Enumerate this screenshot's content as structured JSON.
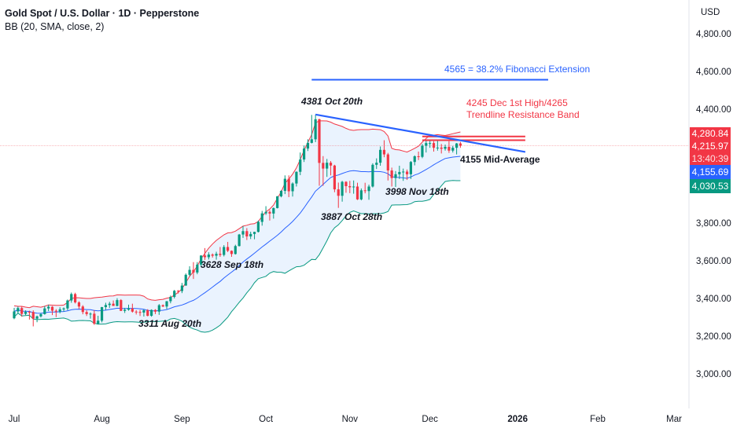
{
  "header": {
    "title": "Gold Spot / U.S. Dollar · 1D · Pepperstone",
    "indicator": "BB (20, SMA, close, 2)"
  },
  "axis": {
    "currency": "USD",
    "y_ticks": [
      "4,800.00",
      "4,600.00",
      "4,400.00",
      "3,800.00",
      "3,600.00",
      "3,400.00",
      "3,200.00",
      "3,000.00"
    ],
    "y_tick_values": [
      4800,
      4600,
      4400,
      3800,
      3600,
      3400,
      3200,
      3000
    ],
    "x_ticks": [
      "Jul",
      "Aug",
      "Sep",
      "Oct",
      "Nov",
      "Dec",
      "2026",
      "Feb",
      "Mar"
    ],
    "x_tick_dates": [
      "2025-07-01",
      "2025-08-01",
      "2025-09-01",
      "2025-10-01",
      "2025-11-01",
      "2025-12-01",
      "2026-01-01",
      "2026-02-01",
      "2026-03-01"
    ]
  },
  "badges": {
    "bb_upper": "4,280.84",
    "last_price": "4,215.97",
    "countdown": "13:40:39",
    "bb_basis": "4,155.69",
    "bb_lower": "4,030.53"
  },
  "annotations": {
    "fib": "4565 = 38.2% Fibonacci Extension",
    "resistance_1": "4245 Dec 1st High/4265",
    "resistance_2": "Trendline Resistance Band",
    "high": "4381 Oct 20th",
    "mid": "4155 Mid-Average",
    "low_nov": "3998 Nov 18th",
    "low_oct": "3887 Oct 28th",
    "low_sep": "3628 Sep 18th",
    "low_aug": "3311 Aug 20th"
  },
  "colors": {
    "up": "#089981",
    "down": "#f23645",
    "bb_upper": "#f23645",
    "bb_basis": "#2962ff",
    "bb_lower": "#089981",
    "bb_fill": "#e3effd",
    "fib": "#2962ff",
    "trendline": "#2962ff",
    "resistance": "#f23645"
  },
  "chart_data": {
    "type": "candlestick",
    "title": "Gold Spot / U.S. Dollar · 1D · Pepperstone",
    "ylim": [
      3000,
      4800
    ],
    "start_date": "2025-07-01",
    "ohlc": [
      [
        3303,
        3358,
        3298,
        3339
      ],
      [
        3339,
        3365,
        3328,
        3357
      ],
      [
        3357,
        3366,
        3311,
        3326
      ],
      [
        3326,
        3345,
        3320,
        3337
      ],
      [
        3337,
        3343,
        3296,
        3336
      ],
      [
        3336,
        3345,
        3260,
        3301
      ],
      [
        3301,
        3317,
        3282,
        3313
      ],
      [
        3313,
        3330,
        3307,
        3325
      ],
      [
        3325,
        3368,
        3322,
        3355
      ],
      [
        3355,
        3375,
        3341,
        3364
      ],
      [
        3364,
        3367,
        3320,
        3343
      ],
      [
        3343,
        3351,
        3309,
        3338
      ],
      [
        3338,
        3361,
        3329,
        3350
      ],
      [
        3350,
        3360,
        3338,
        3355
      ],
      [
        3355,
        3402,
        3345,
        3397
      ],
      [
        3397,
        3439,
        3385,
        3431
      ],
      [
        3431,
        3438,
        3381,
        3387
      ],
      [
        3387,
        3393,
        3352,
        3365
      ],
      [
        3365,
        3372,
        3324,
        3336
      ],
      [
        3336,
        3345,
        3315,
        3325
      ],
      [
        3325,
        3334,
        3301,
        3327
      ],
      [
        3327,
        3346,
        3268,
        3274
      ],
      [
        3274,
        3316,
        3270,
        3290
      ],
      [
        3290,
        3363,
        3281,
        3362
      ],
      [
        3362,
        3385,
        3346,
        3373
      ],
      [
        3373,
        3390,
        3358,
        3380
      ],
      [
        3380,
        3397,
        3370,
        3368
      ],
      [
        3368,
        3409,
        3366,
        3399
      ],
      [
        3399,
        3404,
        3341,
        3342
      ],
      [
        3342,
        3358,
        3331,
        3348
      ],
      [
        3348,
        3375,
        3343,
        3355
      ],
      [
        3355,
        3380,
        3333,
        3338
      ],
      [
        3338,
        3346,
        3323,
        3336
      ],
      [
        3336,
        3347,
        3315,
        3333
      ],
      [
        3333,
        3350,
        3312,
        3346
      ],
      [
        3346,
        3351,
        3313,
        3316
      ],
      [
        3316,
        3350,
        3311,
        3347
      ],
      [
        3347,
        3351,
        3325,
        3338
      ],
      [
        3338,
        3378,
        3321,
        3372
      ],
      [
        3372,
        3376,
        3363,
        3365
      ],
      [
        3365,
        3394,
        3351,
        3393
      ],
      [
        3393,
        3423,
        3382,
        3416
      ],
      [
        3416,
        3453,
        3408,
        3448
      ],
      [
        3448,
        3452,
        3434,
        3447
      ],
      [
        3447,
        3490,
        3436,
        3476
      ],
      [
        3476,
        3540,
        3475,
        3533
      ],
      [
        3533,
        3578,
        3525,
        3559
      ],
      [
        3559,
        3600,
        3511,
        3545
      ],
      [
        3545,
        3600,
        3536,
        3587
      ],
      [
        3587,
        3636,
        3577,
        3635
      ],
      [
        3635,
        3674,
        3612,
        3626
      ],
      [
        3626,
        3652,
        3614,
        3640
      ],
      [
        3640,
        3646,
        3624,
        3634
      ],
      [
        3634,
        3655,
        3613,
        3644
      ],
      [
        3644,
        3680,
        3628,
        3638
      ],
      [
        3638,
        3690,
        3630,
        3680
      ],
      [
        3680,
        3707,
        3653,
        3660
      ],
      [
        3660,
        3662,
        3628,
        3643
      ],
      [
        3643,
        3692,
        3640,
        3685
      ],
      [
        3685,
        3749,
        3683,
        3746
      ],
      [
        3746,
        3791,
        3728,
        3764
      ],
      [
        3764,
        3780,
        3717,
        3736
      ],
      [
        3736,
        3761,
        3722,
        3749
      ],
      [
        3749,
        3761,
        3721,
        3760
      ],
      [
        3760,
        3820,
        3757,
        3813
      ],
      [
        3813,
        3871,
        3793,
        3858
      ],
      [
        3858,
        3896,
        3850,
        3866
      ],
      [
        3866,
        3875,
        3820,
        3857
      ],
      [
        3857,
        3889,
        3830,
        3886
      ],
      [
        3886,
        3950,
        3884,
        3948
      ],
      [
        3948,
        3980,
        3943,
        3977
      ],
      [
        3977,
        4059,
        3960,
        4041
      ],
      [
        4041,
        4059,
        3944,
        3975
      ],
      [
        3975,
        4022,
        3947,
        4016
      ],
      [
        4016,
        4080,
        4000,
        4078
      ],
      [
        4078,
        4180,
        4060,
        4143
      ],
      [
        4143,
        4218,
        4130,
        4201
      ],
      [
        4201,
        4250,
        4188,
        4231
      ],
      [
        4231,
        4379,
        4228,
        4250
      ],
      [
        4250,
        4381,
        4235,
        4356
      ],
      [
        4356,
        4359,
        4004,
        4125
      ],
      [
        4125,
        4161,
        4004,
        4095
      ],
      [
        4095,
        4146,
        4051,
        4126
      ],
      [
        4126,
        4135,
        4059,
        4111
      ],
      [
        4111,
        4115,
        3970,
        3985
      ],
      [
        3985,
        4021,
        3887,
        3951
      ],
      [
        3951,
        4030,
        3920,
        4025
      ],
      [
        4025,
        4028,
        3967,
        4002
      ],
      [
        4002,
        4030,
        3965,
        3996
      ],
      [
        3996,
        4032,
        3962,
        4000
      ],
      [
        4000,
        4020,
        3929,
        3932
      ],
      [
        3932,
        3990,
        3927,
        3980
      ],
      [
        3980,
        4020,
        3964,
        3976
      ],
      [
        3976,
        4010,
        3930,
        4000
      ],
      [
        4000,
        4123,
        3995,
        4115
      ],
      [
        4115,
        4149,
        4093,
        4126
      ],
      [
        4126,
        4212,
        4110,
        4194
      ],
      [
        4194,
        4245,
        4155,
        4170
      ],
      [
        4170,
        4178,
        4032,
        4085
      ],
      [
        4085,
        4100,
        4000,
        4045
      ],
      [
        4045,
        4082,
        3998,
        4065
      ],
      [
        4065,
        4110,
        4040,
        4077
      ],
      [
        4077,
        4095,
        4030,
        4079
      ],
      [
        4079,
        4090,
        4035,
        4065
      ],
      [
        4065,
        4135,
        4040,
        4130
      ],
      [
        4130,
        4165,
        4112,
        4160
      ],
      [
        4160,
        4185,
        4140,
        4157
      ],
      [
        4157,
        4225,
        4150,
        4216
      ],
      [
        4216,
        4241,
        4180,
        4230
      ],
      [
        4230,
        4245,
        4205,
        4230
      ],
      [
        4230,
        4240,
        4185,
        4205
      ],
      [
        4205,
        4241,
        4190,
        4206
      ],
      [
        4206,
        4225,
        4175,
        4200
      ],
      [
        4200,
        4222,
        4190,
        4210
      ],
      [
        4210,
        4240,
        4178,
        4190
      ],
      [
        4190,
        4215,
        4180,
        4205
      ],
      [
        4205,
        4230,
        4170,
        4228
      ],
      [
        4228,
        4236,
        4205,
        4216
      ]
    ],
    "last_price": 4215.97,
    "bollinger": {
      "length": 20,
      "ma": "SMA",
      "source": "close",
      "mult": 2
    },
    "drawings": {
      "fib_line": {
        "price": 4565,
        "from": "2025-10-17",
        "to": "2026-01-13"
      },
      "trendline": {
        "from": {
          "date": "2025-10-20",
          "price": 4381
        },
        "to": {
          "date": "2026-01-05",
          "price": 4183
        }
      },
      "resistance_band": [
        {
          "price": 4265,
          "from": "2025-11-27",
          "to": "2026-01-05"
        },
        {
          "price": 4245,
          "from": "2025-11-27",
          "to": "2026-01-05"
        }
      ]
    }
  }
}
